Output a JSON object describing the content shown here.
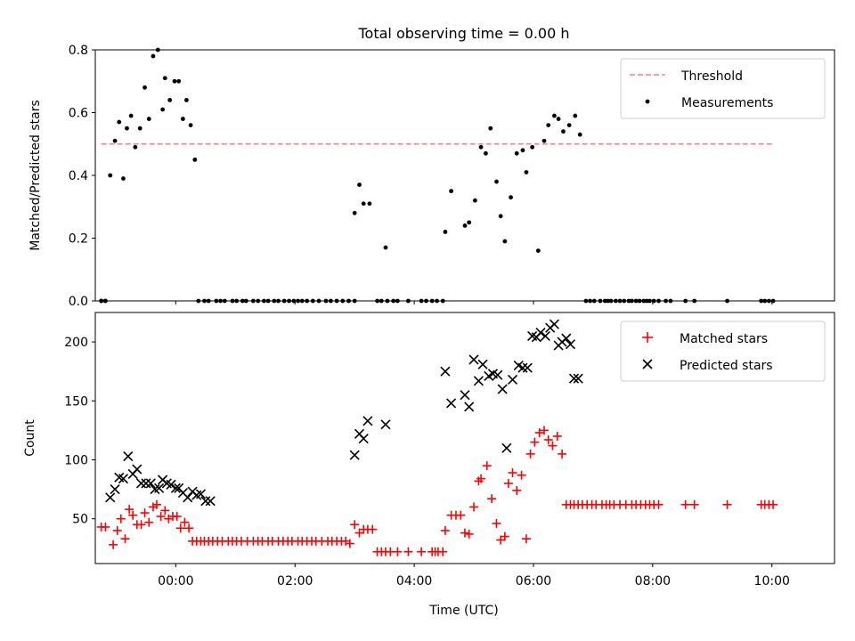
{
  "title": "Total observing time = 0.00 h",
  "colors": {
    "threshold": "#ff7f7f",
    "matched": "#ff0000",
    "predicted": "#000000",
    "measurement": "#000000"
  },
  "chart_data": [
    {
      "type": "scatter",
      "panel": "top",
      "xlabel": "",
      "ylabel": "Matched/Predicted stars",
      "xlim": [
        -1.35,
        11.05
      ],
      "ylim": [
        0,
        0.8
      ],
      "yticks": [
        0.0,
        0.2,
        0.4,
        0.6,
        0.8
      ],
      "ytick_labels": [
        "0.0",
        "0.2",
        "0.4",
        "0.6",
        "0.8"
      ],
      "legend_position": "top-right",
      "threshold": {
        "name": "Threshold",
        "y": 0.5,
        "x_range": [
          -1.25,
          10.02
        ],
        "style": "dashed"
      },
      "series": [
        {
          "name": "Measurements",
          "x": [
            -1.25,
            -1.18,
            -1.1,
            -1.02,
            -0.95,
            -0.88,
            -0.82,
            -0.75,
            -0.68,
            -0.6,
            -0.52,
            -0.45,
            -0.38,
            -0.3,
            -0.22,
            -0.18,
            -0.1,
            -0.02,
            0.05,
            0.12,
            0.18,
            0.25,
            0.32,
            0.38,
            0.48,
            0.55,
            3.0,
            3.08,
            3.15,
            3.25,
            3.52,
            4.52,
            4.62,
            4.85,
            4.92,
            5.02,
            5.12,
            5.2,
            5.28,
            5.38,
            5.45,
            5.52,
            5.62,
            5.72,
            5.82,
            5.88,
            5.98,
            6.08,
            6.18,
            6.25,
            6.35,
            6.42,
            6.5,
            6.6,
            6.7,
            6.78,
            -1.25,
            -1.18,
            0.68,
            0.75,
            0.82,
            0.95,
            1.02,
            1.12,
            1.18,
            1.3,
            1.38,
            1.48,
            1.55,
            1.65,
            1.72,
            1.82,
            1.9,
            1.98,
            2.05,
            2.12,
            2.2,
            2.3,
            2.4,
            2.52,
            2.6,
            2.7,
            2.8,
            2.9,
            3.0,
            3.38,
            3.45,
            3.55,
            3.65,
            3.72,
            3.9,
            4.12,
            4.2,
            4.3,
            4.38,
            4.48,
            6.88,
            6.95,
            7.02,
            7.12,
            7.2,
            7.25,
            7.3,
            7.38,
            7.45,
            7.52,
            7.6,
            7.65,
            7.72,
            7.78,
            7.85,
            7.9,
            7.95,
            8.02,
            8.1,
            8.22,
            8.3,
            8.55,
            8.7,
            9.25,
            9.82,
            9.88,
            9.95,
            10.02
          ],
          "y": [
            0.0,
            0.0,
            0.4,
            0.51,
            0.57,
            0.39,
            0.55,
            0.59,
            0.49,
            0.55,
            0.68,
            0.58,
            0.78,
            0.8,
            0.61,
            0.71,
            0.64,
            0.7,
            0.7,
            0.58,
            0.64,
            0.56,
            0.45,
            0.0,
            0.0,
            0.0,
            0.28,
            0.37,
            0.31,
            0.31,
            0.17,
            0.22,
            0.35,
            0.24,
            0.25,
            0.32,
            0.49,
            0.47,
            0.55,
            0.38,
            0.27,
            0.19,
            0.33,
            0.47,
            0.48,
            0.41,
            0.49,
            0.16,
            0.51,
            0.56,
            0.59,
            0.58,
            0.54,
            0.56,
            0.59,
            0.53,
            0.0,
            0.0,
            0.0,
            0.0,
            0.0,
            0.0,
            0.0,
            0.0,
            0.0,
            0.0,
            0.0,
            0.0,
            0.0,
            0.0,
            0.0,
            0.0,
            0.0,
            0.0,
            0.0,
            0.0,
            0.0,
            0.0,
            0.0,
            0.0,
            0.0,
            0.0,
            0.0,
            0.0,
            0.0,
            0.0,
            0.0,
            0.0,
            0.0,
            0.0,
            0.0,
            0.0,
            0.0,
            0.0,
            0.0,
            0.0,
            0.0,
            0.0,
            0.0,
            0.0,
            0.0,
            0.0,
            0.0,
            0.0,
            0.0,
            0.0,
            0.0,
            0.0,
            0.0,
            0.0,
            0.0,
            0.0,
            0.0,
            0.0,
            0.0,
            0.0,
            0.0,
            0.0,
            0.0,
            0.0,
            0.0,
            0.0,
            0.0,
            0.0
          ]
        }
      ]
    },
    {
      "type": "scatter",
      "panel": "bottom",
      "xlabel": "Time (UTC)",
      "ylabel": "Count",
      "xlim": [
        -1.35,
        11.05
      ],
      "ylim": [
        12,
        225
      ],
      "yticks": [
        50,
        100,
        150,
        200
      ],
      "ytick_labels": [
        "50",
        "100",
        "150",
        "200"
      ],
      "xticks": [
        0,
        2,
        4,
        6,
        8,
        10
      ],
      "xtick_labels": [
        "00:00",
        "02:00",
        "04:00",
        "06:00",
        "08:00",
        "10:00"
      ],
      "legend_position": "top-right",
      "series": [
        {
          "name": "Matched stars",
          "marker": "plus",
          "x": [
            -1.25,
            -1.18,
            -1.05,
            -0.98,
            -0.92,
            -0.85,
            -0.78,
            -0.72,
            -0.65,
            -0.58,
            -0.52,
            -0.45,
            -0.38,
            -0.32,
            -0.25,
            -0.18,
            -0.12,
            -0.05,
            0.02,
            0.08,
            0.15,
            0.22,
            0.28,
            0.35,
            0.42,
            0.48,
            0.55,
            0.62,
            0.7,
            0.78,
            0.88,
            0.95,
            1.02,
            1.1,
            1.2,
            1.3,
            1.38,
            1.45,
            1.55,
            1.62,
            1.72,
            1.8,
            1.88,
            1.95,
            2.05,
            2.12,
            2.2,
            2.28,
            2.35,
            2.45,
            2.55,
            2.62,
            2.7,
            2.78,
            2.85,
            2.92,
            3.0,
            3.08,
            3.15,
            3.22,
            3.3,
            3.38,
            3.45,
            3.52,
            3.6,
            3.72,
            3.9,
            4.12,
            4.3,
            4.35,
            4.4,
            4.48,
            4.52,
            4.62,
            4.7,
            4.78,
            4.85,
            4.92,
            5.0,
            5.08,
            5.12,
            5.22,
            5.3,
            5.38,
            5.45,
            5.52,
            5.58,
            5.65,
            5.72,
            5.8,
            5.88,
            5.95,
            6.02,
            6.1,
            6.18,
            6.25,
            6.32,
            6.4,
            6.48,
            6.55,
            6.62,
            6.68,
            6.75,
            6.82,
            6.9,
            6.98,
            7.05,
            7.15,
            7.22,
            7.28,
            7.35,
            7.45,
            7.55,
            7.65,
            7.72,
            7.8,
            7.88,
            7.95,
            8.02,
            8.1,
            8.55,
            8.7,
            9.25,
            9.82,
            9.88,
            9.95,
            10.02
          ],
          "y": [
            43,
            43,
            28,
            40,
            50,
            33,
            58,
            53,
            45,
            45,
            55,
            47,
            60,
            62,
            52,
            57,
            50,
            52,
            52,
            42,
            47,
            42,
            31,
            31,
            31,
            31,
            31,
            31,
            31,
            31,
            31,
            31,
            31,
            31,
            31,
            31,
            31,
            31,
            31,
            31,
            31,
            31,
            31,
            31,
            31,
            31,
            31,
            31,
            31,
            31,
            31,
            31,
            31,
            31,
            31,
            29,
            45,
            38,
            41,
            41,
            41,
            22,
            22,
            22,
            22,
            22,
            22,
            22,
            22,
            22,
            22,
            22,
            40,
            53,
            53,
            53,
            38,
            37,
            60,
            82,
            84,
            95,
            67,
            46,
            32,
            35,
            80,
            89,
            74,
            87,
            33,
            105,
            115,
            123,
            125,
            117,
            112,
            120,
            105,
            62,
            62,
            62,
            62,
            62,
            62,
            62,
            62,
            62,
            62,
            62,
            62,
            62,
            62,
            62,
            62,
            62,
            62,
            62,
            62,
            62,
            62,
            62,
            62,
            62,
            62,
            62,
            62
          ],
          "y_note": ""
        },
        {
          "name": "Predicted stars",
          "marker": "x",
          "x": [
            -1.1,
            -1.02,
            -0.95,
            -0.88,
            -0.8,
            -0.72,
            -0.65,
            -0.58,
            -0.5,
            -0.42,
            -0.35,
            -0.28,
            -0.22,
            -0.15,
            -0.08,
            0.0,
            0.05,
            0.12,
            0.2,
            0.28,
            0.35,
            0.42,
            0.5,
            0.58,
            3.0,
            3.08,
            3.15,
            3.22,
            3.52,
            4.52,
            4.62,
            4.85,
            4.92,
            5.0,
            5.08,
            5.15,
            5.25,
            5.32,
            5.4,
            5.48,
            5.55,
            5.65,
            5.75,
            5.82,
            5.9,
            5.98,
            6.05,
            6.12,
            6.2,
            6.28,
            6.35,
            6.42,
            6.48,
            6.55,
            6.62,
            6.68,
            6.75
          ],
          "y": [
            68,
            75,
            85,
            84,
            103,
            88,
            92,
            80,
            80,
            80,
            75,
            76,
            83,
            80,
            79,
            76,
            76,
            72,
            68,
            73,
            70,
            71,
            65,
            65,
            104,
            122,
            118,
            133,
            130,
            175,
            148,
            155,
            145,
            185,
            167,
            181,
            171,
            173,
            172,
            160,
            110,
            168,
            180,
            178,
            178,
            205,
            204,
            208,
            205,
            212,
            215,
            197,
            200,
            203,
            198,
            169,
            169
          ]
        }
      ]
    }
  ]
}
